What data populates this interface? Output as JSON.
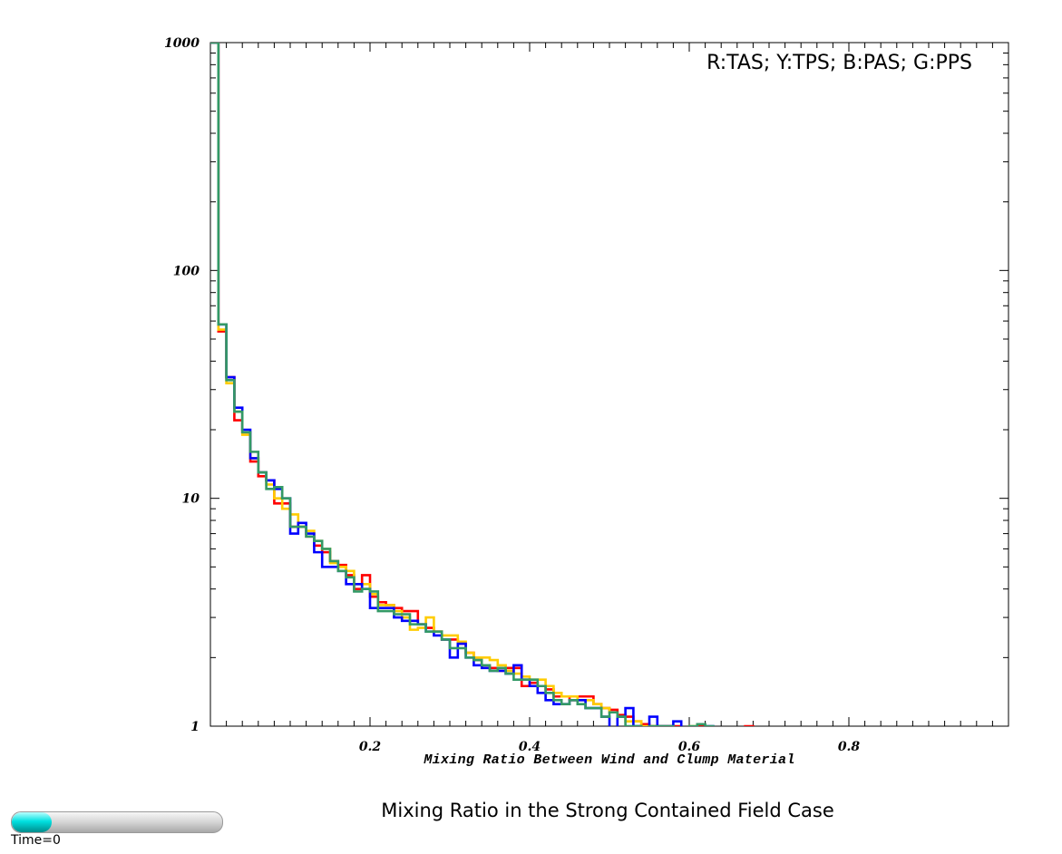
{
  "chart_data": {
    "type": "line",
    "title": "Mixing Ratio in the Strong Contained Field Case",
    "xlabel": "Mixing Ratio Between Wind and Clump Material",
    "ylabel": "",
    "legend_text": "R:TAS; Y:TPS; B:PAS; G:PPS",
    "legend_placement": "top-right",
    "xlim": [
      0,
      1.0
    ],
    "ylim": [
      1,
      1000
    ],
    "yscale": "log",
    "grid": false,
    "xticks": [
      0.2,
      0.4,
      0.6,
      0.8
    ],
    "xtick_labels": [
      "0.2",
      "0.4",
      "0.6",
      "0.8"
    ],
    "yticks": [
      1,
      10,
      100,
      1000
    ],
    "ytick_labels": [
      "1",
      "10",
      "100",
      "1000"
    ],
    "bin_width": 0.01,
    "series": [
      {
        "key": "R",
        "color": "#ff0000",
        "values": [
          1000,
          54,
          34,
          22,
          19.5,
          14.5,
          12.5,
          12,
          9.5,
          9.5,
          7.5,
          7.5,
          6.8,
          6.2,
          5.8,
          5.3,
          5.1,
          4.6,
          4.0,
          4.6,
          3.7,
          3.5,
          3.4,
          3.3,
          3.2,
          3.2,
          2.8,
          2.7,
          2.6,
          2.4,
          2.4,
          2.3,
          2.1,
          1.95,
          1.85,
          1.8,
          1.75,
          1.8,
          1.8,
          1.5,
          1.55,
          1.5,
          1.45,
          1.35,
          1.35,
          1.3,
          1.35,
          1.35,
          1.25,
          1.2,
          1.18,
          1.12,
          1.1,
          1.05,
          1.02,
          1.0,
          1.0,
          1.0,
          1.0,
          0.9,
          0.9,
          1.0,
          0.9,
          0.9,
          0.9,
          0.9,
          0.9,
          1.0,
          0.9,
          0.9
        ]
      },
      {
        "key": "Y",
        "color": "#ffcc00",
        "values": [
          1000,
          55,
          32,
          24,
          19,
          15,
          13,
          11.5,
          10,
          9,
          8.5,
          7.5,
          7.2,
          6.5,
          6.0,
          5.2,
          5.0,
          4.8,
          4.2,
          4.2,
          3.8,
          3.4,
          3.4,
          3.2,
          3.0,
          2.65,
          2.7,
          3.0,
          2.6,
          2.5,
          2.5,
          2.35,
          2.1,
          2.0,
          2.0,
          1.95,
          1.85,
          1.75,
          1.7,
          1.65,
          1.6,
          1.6,
          1.5,
          1.4,
          1.35,
          1.35,
          1.3,
          1.3,
          1.25,
          1.2,
          1.15,
          1.1,
          1.05,
          1.05,
          1.0,
          1.0,
          1.0,
          1.0,
          0.9,
          0.9,
          1.0,
          0.9
        ]
      },
      {
        "key": "B",
        "color": "#0000ff",
        "values": [
          1000,
          58,
          34,
          25,
          20,
          15,
          13,
          12,
          11,
          10,
          7,
          7.8,
          7,
          5.8,
          5.0,
          5.0,
          4.8,
          4.2,
          4.2,
          4.0,
          3.3,
          3.3,
          3.3,
          3.0,
          2.9,
          2.9,
          2.8,
          2.6,
          2.5,
          2.4,
          2.0,
          2.3,
          2.0,
          1.85,
          1.8,
          1.75,
          1.75,
          1.7,
          1.85,
          1.6,
          1.5,
          1.4,
          1.3,
          1.25,
          1.25,
          1.3,
          1.3,
          1.2,
          1.2,
          1.1,
          0.9,
          1.1,
          1.2,
          1.0,
          0.9,
          1.1,
          1.0,
          1.0,
          1.05,
          0.9,
          0.9,
          0.9,
          1.0,
          0.9
        ]
      },
      {
        "key": "G",
        "color": "#339966",
        "values": [
          1000,
          58,
          33,
          24,
          19.5,
          16,
          13,
          11,
          11.2,
          10,
          7.5,
          7.5,
          6.8,
          6.5,
          6.0,
          5.3,
          4.8,
          4.5,
          3.9,
          4.0,
          3.9,
          3.2,
          3.2,
          3.1,
          3.1,
          2.8,
          2.8,
          2.6,
          2.6,
          2.4,
          2.2,
          2.2,
          2.0,
          1.95,
          1.85,
          1.75,
          1.8,
          1.7,
          1.6,
          1.6,
          1.6,
          1.5,
          1.4,
          1.3,
          1.25,
          1.3,
          1.25,
          1.2,
          1.2,
          1.1,
          1.15,
          1.1,
          1.0,
          1.0,
          0.9,
          1.0,
          1.0,
          1.0,
          0.9,
          0.9,
          1.0,
          1.02,
          1.0,
          0.9
        ]
      }
    ]
  },
  "time_control": {
    "label": "Time=0",
    "fill_fraction": 0.19,
    "fill_color": "#00e0e0"
  }
}
